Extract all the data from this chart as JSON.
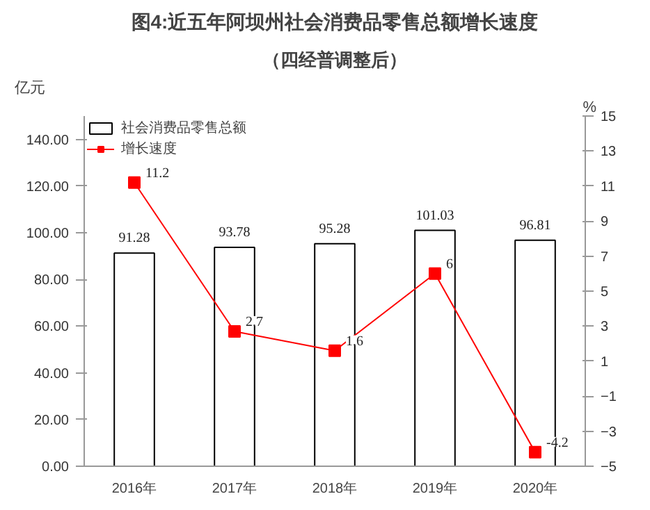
{
  "chart_data": {
    "type": "bar",
    "title": "图4:近五年阿坝州社会消费品零售总额增长速度",
    "subtitle": "（四经普调整后）",
    "ylabel": "亿元",
    "y2label": "%",
    "categories": [
      "2016年",
      "2017年",
      "2018年",
      "2019年",
      "2020年"
    ],
    "series": [
      {
        "name": "社会消费品零售总额",
        "color": "#ffffff",
        "values": [
          91.28,
          93.78,
          95.28,
          101.03,
          96.81
        ],
        "value_labels": [
          "91.28",
          "93.78",
          "95.28",
          "101.03",
          "96.81"
        ]
      },
      {
        "name": "增长速度",
        "type": "line",
        "axis": "y2",
        "color": "#ff0000",
        "marker": "square",
        "values": [
          11.2,
          2.7,
          1.6,
          6,
          -4.2
        ]
      }
    ],
    "data_labels": true,
    "ylim": [
      0,
      150
    ],
    "yticks": [
      {
        "value": 0,
        "label": "0.00"
      },
      {
        "value": 20,
        "label": "20.00"
      },
      {
        "value": 40,
        "label": "40.00"
      },
      {
        "value": 60,
        "label": "60.00"
      },
      {
        "value": 80,
        "label": "80.00"
      },
      {
        "value": 100,
        "label": "100.00"
      },
      {
        "value": 120,
        "label": "120.00"
      },
      {
        "value": 140,
        "label": "140.00"
      }
    ],
    "y2lim": [
      -5,
      15
    ],
    "y2ticks": [
      -5,
      -3,
      -1,
      1,
      3,
      5,
      7,
      9,
      11,
      13,
      15
    ],
    "grid": false,
    "legend": "top left"
  }
}
